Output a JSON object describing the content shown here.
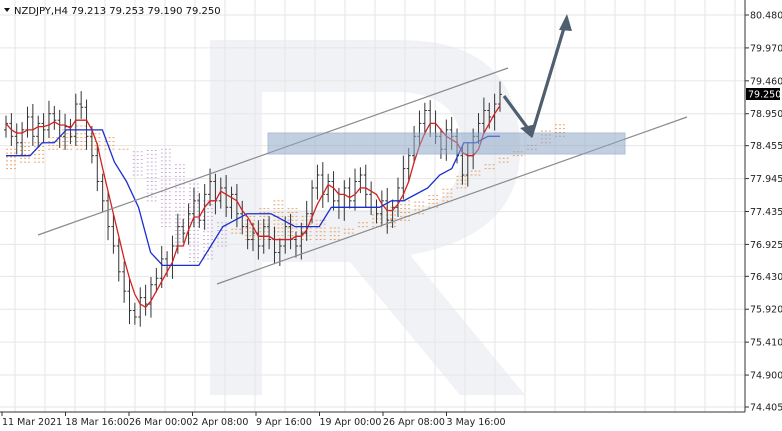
{
  "chart_data": {
    "type": "candlestick",
    "symbol_header": "NZDJPY,H4  79.213 79.253 79.190 79.250",
    "ylim": [
      74.405,
      80.48
    ],
    "y_ticks": [
      "80.480",
      "79.970",
      "79.460",
      "78.950",
      "78.455",
      "77.945",
      "77.435",
      "76.925",
      "76.430",
      "75.920",
      "75.410",
      "74.900",
      "74.405"
    ],
    "x_ticks": [
      "11 Mar 2021",
      "18 Mar 16:00",
      "26 Mar 00:00",
      "2 Apr 08:00",
      "9 Apr 16:00",
      "19 Apr 00:00",
      "26 Apr 08:00",
      "3 May 16:00"
    ],
    "current_price": "79.250",
    "grid": true,
    "close_series": [
      78.8,
      78.6,
      78.5,
      78.7,
      78.9,
      78.6,
      78.8,
      78.7,
      78.95,
      78.85,
      78.6,
      78.75,
      78.6,
      79.1,
      79.05,
      78.6,
      78.3,
      77.9,
      77.6,
      77.2,
      76.9,
      76.5,
      76.2,
      75.9,
      75.8,
      76.1,
      76.0,
      76.3,
      76.4,
      76.7,
      76.6,
      76.9,
      77.2,
      77.1,
      77.4,
      77.6,
      77.3,
      77.7,
      77.9,
      77.6,
      77.8,
      77.5,
      77.7,
      77.4,
      77.2,
      77.0,
      77.1,
      76.9,
      77.2,
      77.0,
      76.8,
      76.9,
      77.2,
      77.0,
      76.9,
      77.1,
      77.4,
      77.8,
      78.0,
      77.7,
      77.9,
      77.6,
      77.5,
      77.8,
      77.6,
      77.9,
      78.0,
      77.7,
      77.5,
      77.4,
      77.6,
      77.3,
      77.5,
      77.8,
      78.1,
      78.3,
      78.6,
      78.8,
      79.0,
      78.8,
      78.6,
      78.4,
      78.7,
      78.6,
      78.3,
      78.0,
      78.3,
      78.6,
      78.8,
      79.0,
      78.9,
      79.1,
      79.25
    ],
    "kijun": [
      78.3,
      78.3,
      78.3,
      78.5,
      78.5,
      78.7,
      78.7,
      78.7,
      78.7,
      78.2,
      77.9,
      77.5,
      76.8,
      76.6,
      76.6,
      76.6,
      76.6,
      76.9,
      77.2,
      77.3,
      77.4,
      77.4,
      77.4,
      77.3,
      77.2,
      77.2,
      77.2,
      77.5,
      77.5,
      77.5,
      77.5,
      77.5,
      77.6,
      77.6,
      77.7,
      77.8,
      78.0,
      78.1,
      78.5,
      78.5,
      78.6,
      78.6
    ],
    "cloud_a": [
      78.4,
      78.5,
      78.5,
      78.6,
      78.7,
      78.8,
      78.7,
      78.6,
      78.4,
      78.0,
      77.6,
      77.2,
      76.9,
      76.6,
      76.7,
      76.9,
      77.2,
      77.4,
      77.5,
      77.6,
      77.5,
      77.4,
      77.3,
      77.2,
      77.2,
      77.3,
      77.4,
      77.5,
      77.6,
      77.6,
      77.7,
      77.8,
      78.0,
      78.1,
      78.2,
      78.3,
      78.4,
      78.5,
      78.7,
      78.8
    ],
    "cloud_b": [
      78.1,
      78.2,
      78.2,
      78.4,
      78.4,
      78.4,
      78.4,
      78.4,
      78.4,
      78.4,
      78.4,
      78.4,
      78.2,
      77.9,
      77.6,
      77.3,
      77.1,
      77.0,
      77.0,
      77.0,
      77.0,
      77.0,
      77.0,
      77.0,
      77.1,
      77.2,
      77.2,
      77.2,
      77.3,
      77.4,
      77.5,
      77.6,
      77.8,
      78.0,
      78.1,
      78.2,
      78.3,
      78.4,
      78.5,
      78.6
    ]
  }
}
